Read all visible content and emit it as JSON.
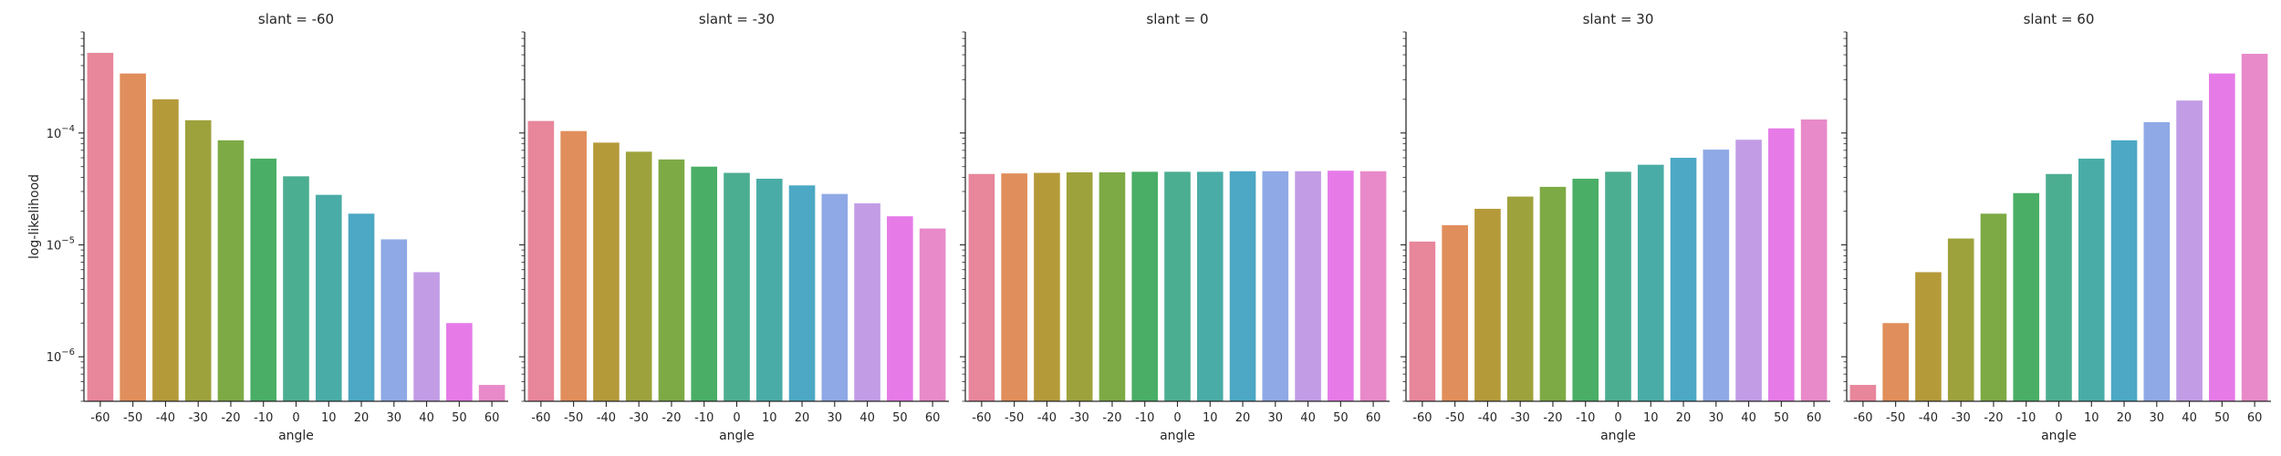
{
  "chart_data": {
    "type": "bar",
    "y_scale": "log",
    "ylim": [
      4e-07,
      0.0008
    ],
    "ylabel": "log-likelihood",
    "xlabel": "angle",
    "grid": false,
    "y_ticks": [
      {
        "value": 1e-06,
        "base": "10",
        "exp": "−6"
      },
      {
        "value": 1e-05,
        "base": "10",
        "exp": "−5"
      },
      {
        "value": 0.0001,
        "base": "10",
        "exp": "−4"
      }
    ],
    "categories": [
      "-60",
      "-50",
      "-40",
      "-30",
      "-20",
      "-10",
      "0",
      "10",
      "20",
      "30",
      "40",
      "50",
      "60"
    ],
    "colors": [
      "#e8869b",
      "#e08e5b",
      "#b59a3a",
      "#9ea23c",
      "#7daa45",
      "#4aae66",
      "#4cae91",
      "#4aaca6",
      "#4ca8c4",
      "#8fa9e6",
      "#c29de6",
      "#e67be8",
      "#e88ac9"
    ],
    "panels": [
      {
        "title": "slant = -60",
        "values": [
          0.00052,
          0.00034,
          0.0002,
          0.00013,
          8.6e-05,
          5.9e-05,
          4.1e-05,
          2.8e-05,
          1.9e-05,
          1.12e-05,
          5.7e-06,
          2e-06,
          5.6e-07
        ]
      },
      {
        "title": "slant = -30",
        "values": [
          0.000128,
          0.000104,
          8.2e-05,
          6.8e-05,
          5.8e-05,
          5e-05,
          4.4e-05,
          3.9e-05,
          3.4e-05,
          2.85e-05,
          2.35e-05,
          1.8e-05,
          1.4e-05
        ]
      },
      {
        "title": "slant = 0",
        "values": [
          4.3e-05,
          4.35e-05,
          4.4e-05,
          4.45e-05,
          4.45e-05,
          4.5e-05,
          4.5e-05,
          4.5e-05,
          4.55e-05,
          4.55e-05,
          4.55e-05,
          4.6e-05,
          4.55e-05
        ]
      },
      {
        "title": "slant = 30",
        "values": [
          1.07e-05,
          1.5e-05,
          2.1e-05,
          2.7e-05,
          3.3e-05,
          3.9e-05,
          4.5e-05,
          5.2e-05,
          6e-05,
          7.1e-05,
          8.7e-05,
          0.00011,
          0.000132
        ]
      },
      {
        "title": "slant = 60",
        "values": [
          5.6e-07,
          2e-06,
          5.7e-06,
          1.14e-05,
          1.9e-05,
          2.9e-05,
          4.3e-05,
          5.9e-05,
          8.6e-05,
          0.000125,
          0.000195,
          0.00034,
          0.00051
        ]
      }
    ]
  }
}
